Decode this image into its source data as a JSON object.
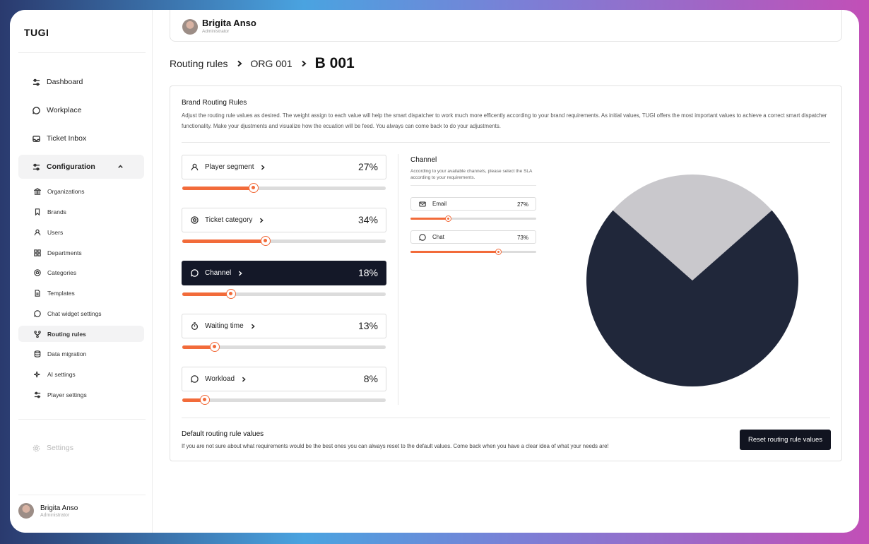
{
  "app": {
    "logo": "TUGI"
  },
  "user": {
    "name": "Brigita Anso",
    "role": "Administrator"
  },
  "sidebar": {
    "items": [
      {
        "label": "Dashboard",
        "icon": "sliders-icon"
      },
      {
        "label": "Workplace",
        "icon": "chat-bubble-icon"
      },
      {
        "label": "Ticket Inbox",
        "icon": "inbox-icon"
      },
      {
        "label": "Configuration",
        "icon": "sliders-icon",
        "expanded": true
      }
    ],
    "sub_items": [
      {
        "label": "Organizations",
        "icon": "bank-icon"
      },
      {
        "label": "Brands",
        "icon": "bookmark-icon"
      },
      {
        "label": "Users",
        "icon": "user-icon"
      },
      {
        "label": "Departments",
        "icon": "grid-icon"
      },
      {
        "label": "Categories",
        "icon": "ball-icon"
      },
      {
        "label": "Templates",
        "icon": "document-icon"
      },
      {
        "label": "Chat widget settings",
        "icon": "chat-bubble-icon"
      },
      {
        "label": "Routing rules",
        "icon": "routing-icon",
        "active": true
      },
      {
        "label": "Data migration",
        "icon": "database-icon"
      },
      {
        "label": "AI settings",
        "icon": "sparkle-icon"
      },
      {
        "label": "Player settings",
        "icon": "sliders-icon"
      }
    ],
    "settings_label": "Settings"
  },
  "breadcrumb": [
    "Routing rules",
    "ORG 001",
    "B 001"
  ],
  "brand_rules": {
    "title": "Brand Routing Rules",
    "description": "Adjust the routing rule values as desired. The weight assign to each value will help the smart dispatcher to work much more efficently according to your brand requirements. As initial values, TUGI offers the most important values to achieve a correct smart dispatcher functionality. Make your djustments and visualize how the ecuation will be feed. You always can come back to do your adjustments.",
    "rules": [
      {
        "label": "Player segment",
        "value": "27%",
        "percent": 35,
        "icon": "user-icon"
      },
      {
        "label": "Ticket category",
        "value": "34%",
        "percent": 41,
        "icon": "ball-icon"
      },
      {
        "label": "Channel",
        "value": "18%",
        "percent": 24,
        "icon": "chat-bubble-icon",
        "active": true
      },
      {
        "label": "Waiting time",
        "value": "13%",
        "percent": 16,
        "icon": "stopwatch-icon"
      },
      {
        "label": "Workload",
        "value": "8%",
        "percent": 11,
        "icon": "chat-bubble-icon"
      }
    ]
  },
  "channel": {
    "title": "Channel",
    "description": "According to your available channels, please select the SLA according to your requirements.",
    "items": [
      {
        "label": "Email",
        "value": "27%",
        "percent": 30,
        "icon": "mail-icon"
      },
      {
        "label": "Chat",
        "value": "73%",
        "percent": 70,
        "icon": "chat-bubble-icon"
      }
    ]
  },
  "chart_data": {
    "type": "pie",
    "labels": [
      "Email",
      "Chat"
    ],
    "values": [
      27,
      73
    ],
    "colors": [
      "#c9c8cc",
      "#20273a"
    ]
  },
  "defaults": {
    "title": "Default routing rule values",
    "description": "If you are not sure about what requirements would be the best ones you can always reset to the default values. Come back when you have a clear idea of what your needs are!",
    "reset_label": "Reset routing rule values"
  }
}
